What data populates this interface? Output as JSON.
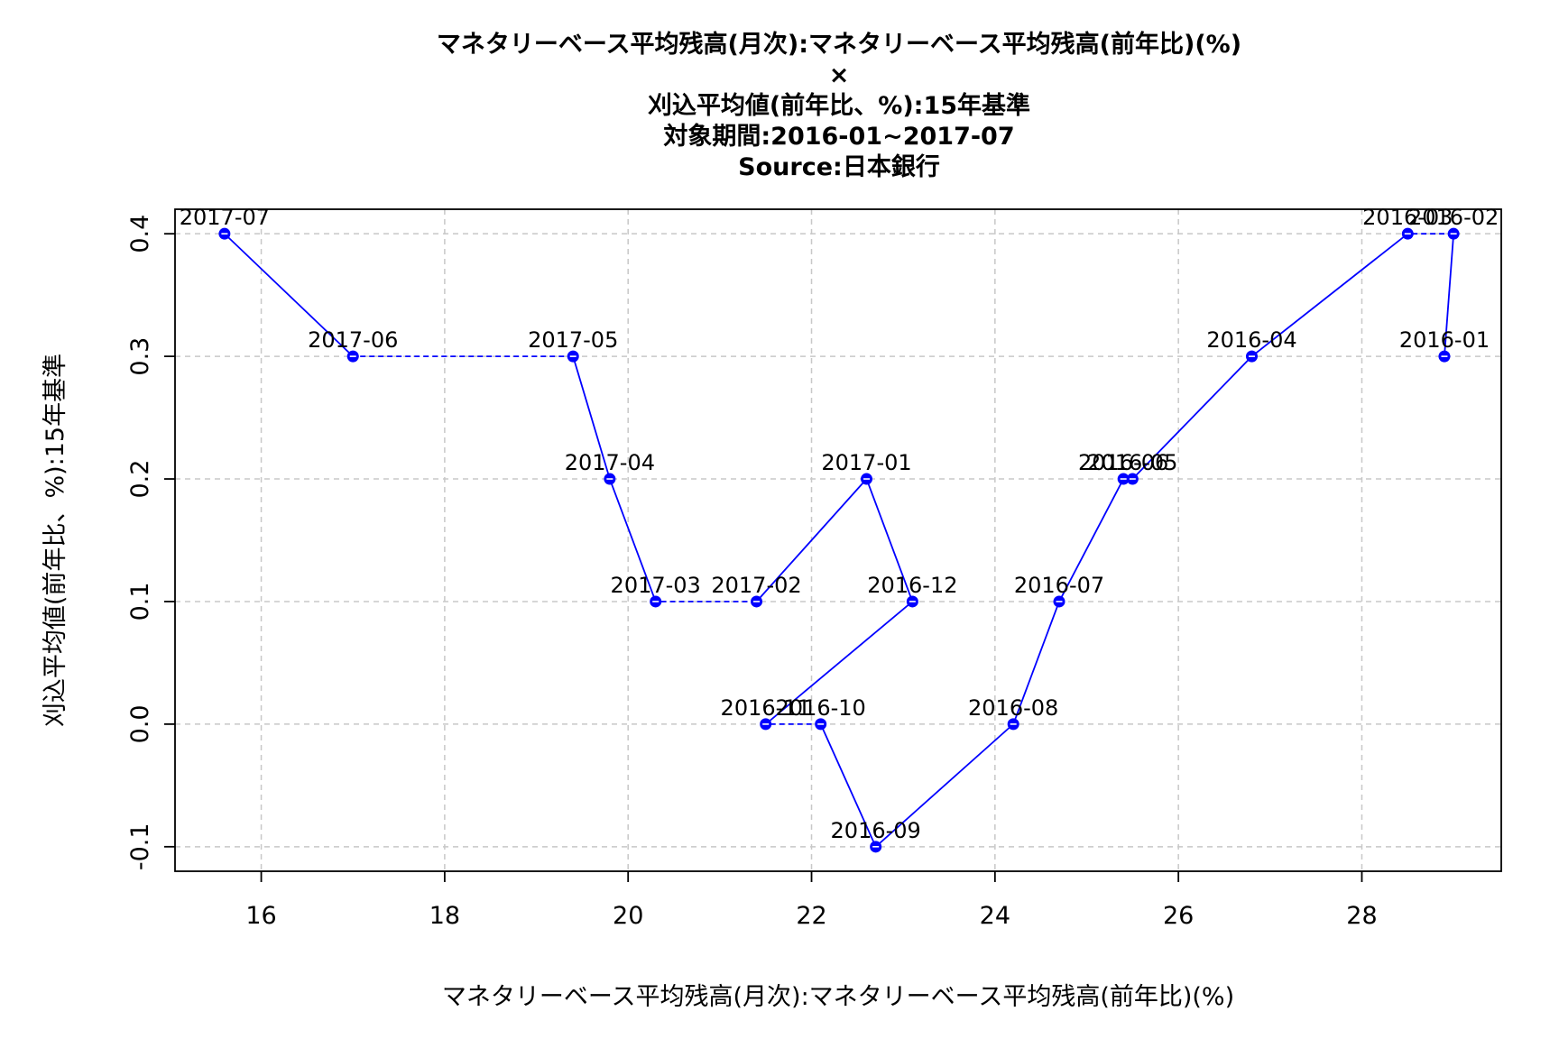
{
  "chart_data": {
    "type": "line",
    "title_lines": [
      "マネタリーベース平均残高(月次):マネタリーベース平均残高(前年比)(%)",
      "×",
      "刈込平均値(前年比、%):15年基準",
      "対象期間:2016-01~2017-07",
      "Source:日本銀行"
    ],
    "xlabel": "マネタリーベース平均残高(月次):マネタリーベース平均残高(前年比)(%)",
    "ylabel": "刈込平均値(前年比、%):15年基準",
    "xlim": [
      15.06,
      29.52
    ],
    "ylim": [
      -0.12,
      0.42
    ],
    "x_ticks": [
      16,
      18,
      20,
      22,
      24,
      26,
      28
    ],
    "y_ticks": [
      -0.1,
      0.0,
      0.1,
      0.2,
      0.3,
      0.4
    ],
    "x_tick_labels": [
      "16",
      "18",
      "20",
      "22",
      "24",
      "26",
      "28"
    ],
    "y_tick_labels": [
      "-0.1",
      "0.0",
      "0.1",
      "0.2",
      "0.3",
      "0.4"
    ],
    "grid": true,
    "color": "#0000ff",
    "points": [
      {
        "label": "2016-01",
        "x": 28.9,
        "y": 0.3
      },
      {
        "label": "2016-02",
        "x": 29.0,
        "y": 0.4
      },
      {
        "label": "2016-03",
        "x": 28.5,
        "y": 0.4
      },
      {
        "label": "2016-04",
        "x": 26.8,
        "y": 0.3
      },
      {
        "label": "2016-05",
        "x": 25.5,
        "y": 0.2
      },
      {
        "label": "2016-06",
        "x": 25.4,
        "y": 0.2
      },
      {
        "label": "2016-07",
        "x": 24.7,
        "y": 0.1
      },
      {
        "label": "2016-08",
        "x": 24.2,
        "y": 0.0
      },
      {
        "label": "2016-09",
        "x": 22.7,
        "y": -0.1
      },
      {
        "label": "2016-10",
        "x": 22.1,
        "y": 0.0
      },
      {
        "label": "2016-11",
        "x": 21.5,
        "y": 0.0
      },
      {
        "label": "2016-12",
        "x": 23.1,
        "y": 0.1
      },
      {
        "label": "2017-01",
        "x": 22.6,
        "y": 0.2
      },
      {
        "label": "2017-02",
        "x": 21.4,
        "y": 0.1
      },
      {
        "label": "2017-03",
        "x": 20.3,
        "y": 0.1
      },
      {
        "label": "2017-04",
        "x": 19.8,
        "y": 0.2
      },
      {
        "label": "2017-05",
        "x": 19.4,
        "y": 0.3
      },
      {
        "label": "2017-06",
        "x": 17.0,
        "y": 0.3
      },
      {
        "label": "2017-07",
        "x": 15.6,
        "y": 0.4
      }
    ]
  }
}
